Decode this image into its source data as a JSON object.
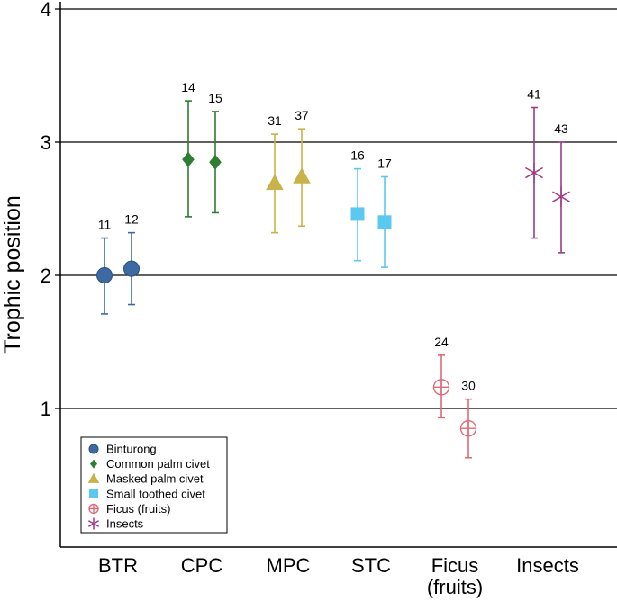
{
  "chart_data": {
    "type": "scatter",
    "ylabel": "Trophic position",
    "ylim": [
      0,
      4
    ],
    "yticks": [
      1,
      2,
      3,
      4
    ],
    "categories": [
      {
        "lines": [
          "BTR"
        ]
      },
      {
        "lines": [
          "CPC"
        ]
      },
      {
        "lines": [
          "MPC"
        ]
      },
      {
        "lines": [
          "STC"
        ]
      },
      {
        "lines": [
          "Ficus",
          "(fruits)"
        ]
      },
      {
        "lines": [
          "Insects"
        ]
      }
    ],
    "series": [
      {
        "name": "Binturong",
        "marker": "circle",
        "color": "#3d6aa3",
        "category": 0,
        "points": [
          {
            "n": "11",
            "y": 2.0,
            "low": 1.71,
            "high": 2.28
          },
          {
            "n": "12",
            "y": 2.05,
            "low": 1.78,
            "high": 2.32
          }
        ]
      },
      {
        "name": "Common palm civet",
        "marker": "diamond",
        "color": "#2e7d32",
        "category": 1,
        "points": [
          {
            "n": "14",
            "y": 2.87,
            "low": 2.44,
            "high": 3.31
          },
          {
            "n": "15",
            "y": 2.85,
            "low": 2.47,
            "high": 3.23
          }
        ]
      },
      {
        "name": "Masked palm civet",
        "marker": "triangle",
        "color": "#c8b24a",
        "category": 2,
        "points": [
          {
            "n": "31",
            "y": 2.69,
            "low": 2.32,
            "high": 3.06
          },
          {
            "n": "37",
            "y": 2.74,
            "low": 2.37,
            "high": 3.1
          }
        ]
      },
      {
        "name": "Small toothed civet",
        "marker": "square",
        "color": "#5bc8f0",
        "category": 3,
        "points": [
          {
            "n": "16",
            "y": 2.46,
            "low": 2.11,
            "high": 2.8
          },
          {
            "n": "17",
            "y": 2.4,
            "low": 2.06,
            "high": 2.74
          }
        ]
      },
      {
        "name": "Ficus (fruits)",
        "marker": "circle-plus",
        "color": "#e06a78",
        "category": 4,
        "points": [
          {
            "n": "24",
            "y": 1.16,
            "low": 0.93,
            "high": 1.4
          },
          {
            "n": "30",
            "y": 0.85,
            "low": 0.63,
            "high": 1.07
          }
        ]
      },
      {
        "name": "Insects",
        "marker": "asterisk",
        "color": "#a03a85",
        "category": 5,
        "points": [
          {
            "n": "41",
            "y": 2.77,
            "low": 2.28,
            "high": 3.26
          },
          {
            "n": "43",
            "y": 2.59,
            "low": 2.17,
            "high": 3.0
          }
        ]
      }
    ],
    "legend_position": "bottom-left"
  }
}
